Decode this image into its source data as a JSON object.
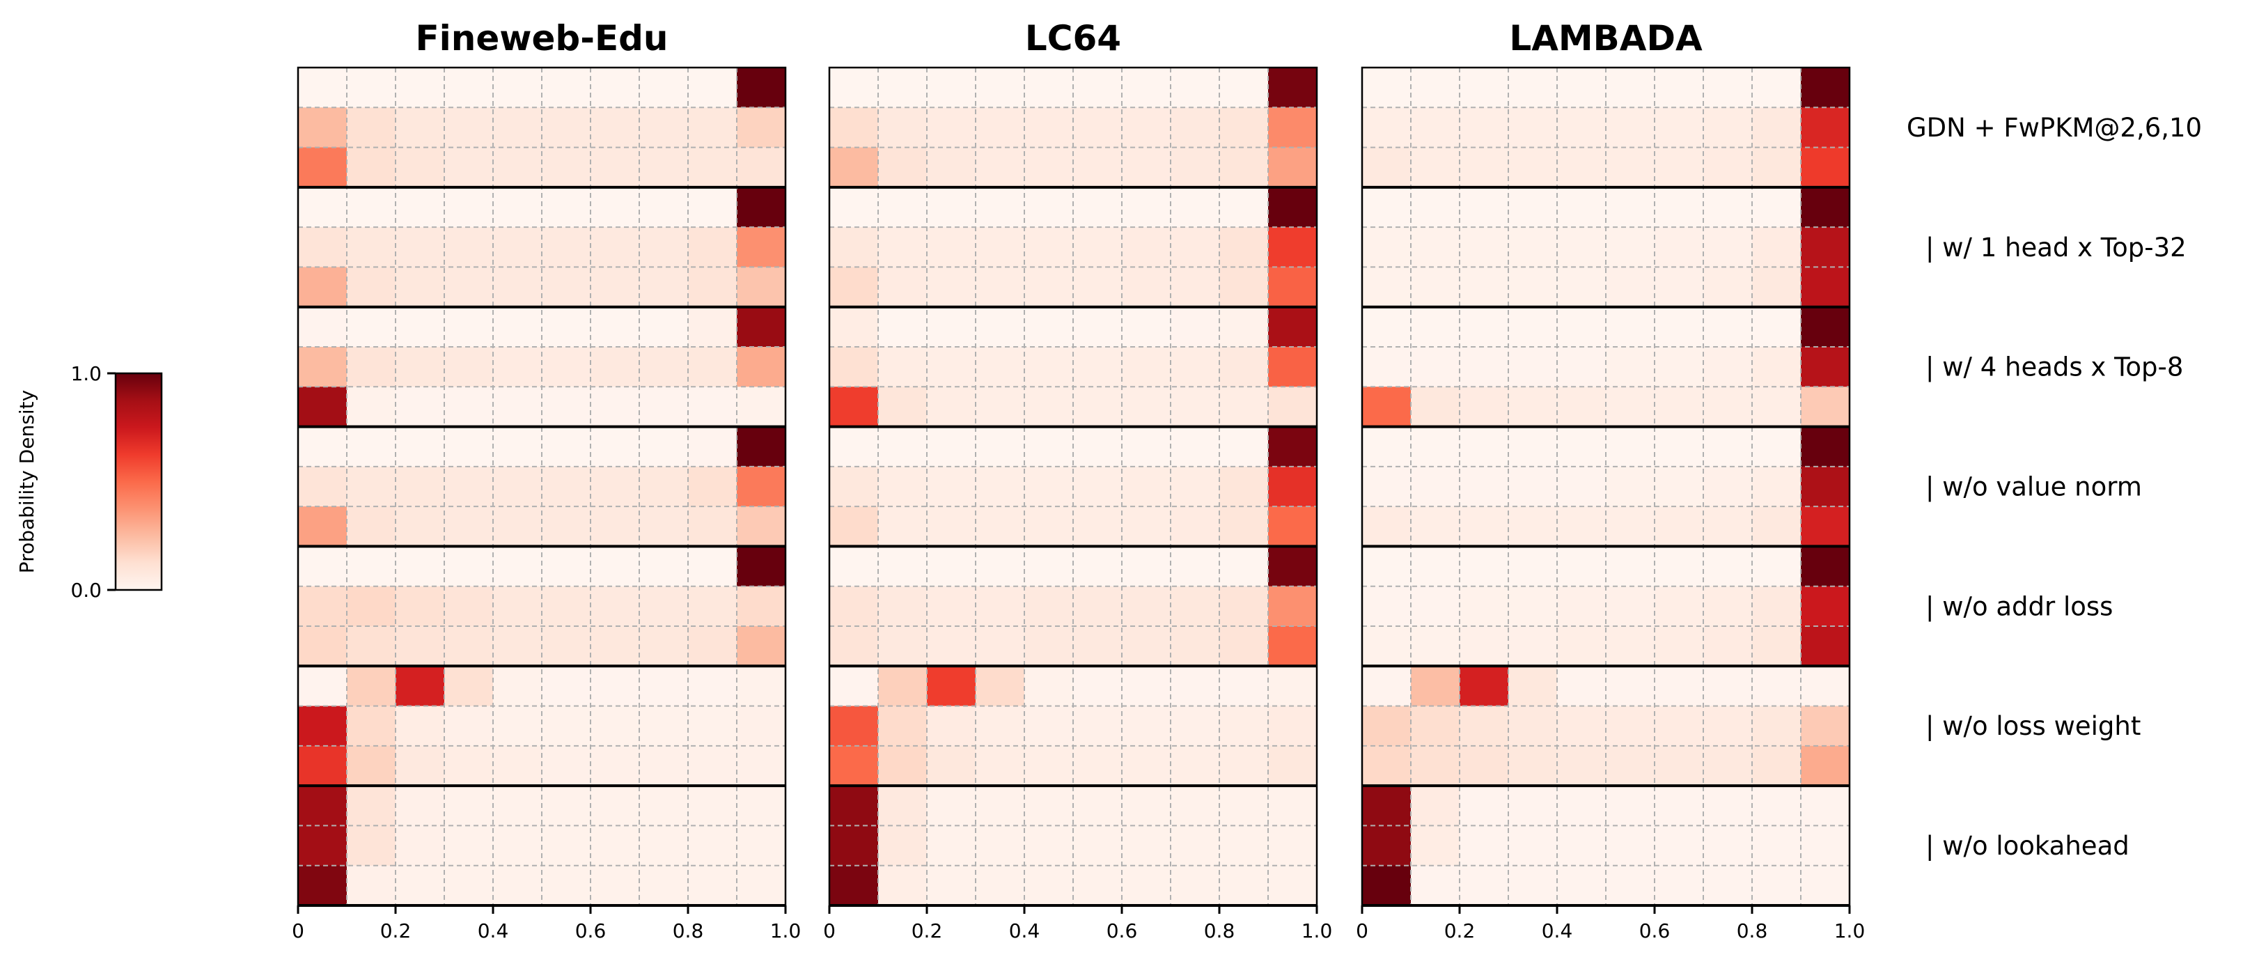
{
  "chart_data": {
    "type": "heatmap",
    "colormap": "Reds",
    "colorbar": {
      "label": "Probability Density",
      "ticks": [
        "0.0",
        "1.0"
      ],
      "range": [
        0,
        1
      ]
    },
    "x_ticks": [
      "0",
      "0.2",
      "0.4",
      "0.6",
      "0.8",
      "1.0"
    ],
    "xlim": [
      0,
      1
    ],
    "bins": 10,
    "grid": true,
    "row_groups": [
      "GDN + FwPKM@2,6,10",
      "| w/ 1 head x Top-32",
      "| w/ 4 heads x Top-8",
      "| w/o value norm",
      "| w/o addr loss",
      "| w/o loss weight",
      "| w/o lookahead"
    ],
    "rows_per_group": 3,
    "panels": [
      {
        "title": "Fineweb-Edu",
        "values": [
          [
            0,
            0,
            0,
            0,
            0,
            0,
            0,
            0,
            0,
            1
          ],
          [
            0.25,
            0.12,
            0.08,
            0.07,
            0.07,
            0.07,
            0.07,
            0.07,
            0.08,
            0.17
          ],
          [
            0.45,
            0.12,
            0.09,
            0.07,
            0.07,
            0.07,
            0.07,
            0.07,
            0.08,
            0.1
          ],
          [
            0,
            0,
            0,
            0,
            0,
            0,
            0,
            0,
            0,
            1
          ],
          [
            0.1,
            0.08,
            0.07,
            0.07,
            0.07,
            0.07,
            0.07,
            0.07,
            0.1,
            0.38
          ],
          [
            0.28,
            0.1,
            0.08,
            0.07,
            0.07,
            0.07,
            0.07,
            0.07,
            0.1,
            0.22
          ],
          [
            0.01,
            0,
            0,
            0,
            0,
            0,
            0,
            0,
            0.03,
            0.9
          ],
          [
            0.25,
            0.1,
            0.08,
            0.07,
            0.06,
            0.06,
            0.07,
            0.07,
            0.08,
            0.3
          ],
          [
            0.88,
            0.02,
            0.01,
            0.01,
            0.01,
            0.01,
            0.01,
            0.01,
            0.01,
            0.02
          ],
          [
            0,
            0,
            0,
            0,
            0,
            0,
            0,
            0,
            0.01,
            1
          ],
          [
            0.1,
            0.08,
            0.08,
            0.07,
            0.07,
            0.07,
            0.07,
            0.08,
            0.12,
            0.45
          ],
          [
            0.33,
            0.1,
            0.08,
            0.07,
            0.07,
            0.07,
            0.07,
            0.07,
            0.09,
            0.2
          ],
          [
            0,
            0,
            0,
            0,
            0,
            0,
            0,
            0,
            0,
            1
          ],
          [
            0.14,
            0.15,
            0.12,
            0.1,
            0.08,
            0.08,
            0.07,
            0.07,
            0.08,
            0.14
          ],
          [
            0.15,
            0.12,
            0.1,
            0.09,
            0.08,
            0.08,
            0.08,
            0.08,
            0.1,
            0.25
          ],
          [
            0.01,
            0.18,
            0.72,
            0.12,
            0.02,
            0.01,
            0.01,
            0.01,
            0.01,
            0.02
          ],
          [
            0.75,
            0.14,
            0.05,
            0.03,
            0.02,
            0.02,
            0.02,
            0.02,
            0.02,
            0.03
          ],
          [
            0.65,
            0.17,
            0.07,
            0.05,
            0.04,
            0.03,
            0.03,
            0.03,
            0.03,
            0.03
          ],
          [
            0.88,
            0.1,
            0.03,
            0.02,
            0.02,
            0.02,
            0.02,
            0.02,
            0.02,
            0.02
          ],
          [
            0.88,
            0.1,
            0.03,
            0.02,
            0.02,
            0.02,
            0.02,
            0.02,
            0.02,
            0.02
          ],
          [
            0.95,
            0.03,
            0.02,
            0.02,
            0.02,
            0.02,
            0.02,
            0.02,
            0.02,
            0.02
          ]
        ]
      },
      {
        "title": "LC64",
        "values": [
          [
            0,
            0,
            0,
            0,
            0,
            0,
            0,
            0,
            0,
            0.97
          ],
          [
            0.13,
            0.07,
            0.06,
            0.06,
            0.06,
            0.06,
            0.06,
            0.07,
            0.09,
            0.4
          ],
          [
            0.25,
            0.1,
            0.07,
            0.06,
            0.06,
            0.06,
            0.06,
            0.07,
            0.09,
            0.33
          ],
          [
            0,
            0,
            0,
            0,
            0,
            0,
            0,
            0,
            0,
            1
          ],
          [
            0.08,
            0.05,
            0.05,
            0.05,
            0.05,
            0.05,
            0.06,
            0.06,
            0.1,
            0.62
          ],
          [
            0.14,
            0.06,
            0.05,
            0.05,
            0.05,
            0.05,
            0.06,
            0.06,
            0.1,
            0.52
          ],
          [
            0.05,
            0,
            0,
            0,
            0,
            0,
            0,
            0.01,
            0.02,
            0.86
          ],
          [
            0.12,
            0.05,
            0.04,
            0.04,
            0.04,
            0.04,
            0.05,
            0.05,
            0.07,
            0.52
          ],
          [
            0.62,
            0.09,
            0.05,
            0.04,
            0.04,
            0.04,
            0.04,
            0.04,
            0.05,
            0.1
          ],
          [
            0,
            0,
            0,
            0,
            0,
            0,
            0,
            0,
            0,
            0.96
          ],
          [
            0.08,
            0.05,
            0.04,
            0.04,
            0.04,
            0.04,
            0.05,
            0.05,
            0.09,
            0.66
          ],
          [
            0.14,
            0.05,
            0.05,
            0.05,
            0.05,
            0.05,
            0.05,
            0.06,
            0.09,
            0.5
          ],
          [
            0,
            0,
            0,
            0,
            0,
            0,
            0,
            0,
            0,
            0.97
          ],
          [
            0.1,
            0.07,
            0.06,
            0.06,
            0.07,
            0.07,
            0.07,
            0.08,
            0.1,
            0.38
          ],
          [
            0.1,
            0.07,
            0.06,
            0.06,
            0.07,
            0.07,
            0.07,
            0.08,
            0.1,
            0.5
          ],
          [
            0.01,
            0.18,
            0.62,
            0.14,
            0.02,
            0.01,
            0.01,
            0.01,
            0.01,
            0.02
          ],
          [
            0.55,
            0.14,
            0.06,
            0.04,
            0.03,
            0.03,
            0.03,
            0.03,
            0.04,
            0.06
          ],
          [
            0.5,
            0.15,
            0.08,
            0.05,
            0.04,
            0.04,
            0.04,
            0.04,
            0.05,
            0.08
          ],
          [
            0.92,
            0.07,
            0.02,
            0.02,
            0.02,
            0.02,
            0.02,
            0.02,
            0.02,
            0.02
          ],
          [
            0.92,
            0.07,
            0.02,
            0.02,
            0.02,
            0.02,
            0.02,
            0.02,
            0.02,
            0.02
          ],
          [
            0.96,
            0.04,
            0.02,
            0.02,
            0.02,
            0.02,
            0.02,
            0.02,
            0.02,
            0.02
          ]
        ]
      },
      {
        "title": "LAMBADA",
        "values": [
          [
            0,
            0,
            0,
            0,
            0,
            0,
            0,
            0,
            0,
            1
          ],
          [
            0.04,
            0.04,
            0.04,
            0.04,
            0.04,
            0.04,
            0.04,
            0.05,
            0.07,
            0.7
          ],
          [
            0.07,
            0.05,
            0.05,
            0.05,
            0.05,
            0.05,
            0.05,
            0.06,
            0.08,
            0.63
          ],
          [
            0,
            0,
            0,
            0,
            0,
            0,
            0,
            0,
            0,
            1
          ],
          [
            0.02,
            0.02,
            0.02,
            0.02,
            0.02,
            0.02,
            0.03,
            0.03,
            0.06,
            0.82
          ],
          [
            0.02,
            0.02,
            0.02,
            0.02,
            0.02,
            0.03,
            0.03,
            0.04,
            0.07,
            0.8
          ],
          [
            0,
            0,
            0,
            0,
            0,
            0,
            0,
            0,
            0,
            1
          ],
          [
            0.01,
            0.01,
            0.01,
            0.01,
            0.01,
            0.02,
            0.02,
            0.03,
            0.05,
            0.82
          ],
          [
            0.5,
            0.08,
            0.06,
            0.05,
            0.05,
            0.04,
            0.04,
            0.04,
            0.04,
            0.2
          ],
          [
            0,
            0,
            0,
            0,
            0,
            0,
            0,
            0,
            0,
            1
          ],
          [
            0.01,
            0.01,
            0.01,
            0.01,
            0.01,
            0.02,
            0.02,
            0.03,
            0.04,
            0.85
          ],
          [
            0.06,
            0.04,
            0.04,
            0.04,
            0.04,
            0.04,
            0.05,
            0.05,
            0.07,
            0.72
          ],
          [
            0,
            0,
            0,
            0,
            0,
            0,
            0,
            0,
            0,
            1
          ],
          [
            0.01,
            0.01,
            0.02,
            0.02,
            0.03,
            0.03,
            0.04,
            0.05,
            0.07,
            0.75
          ],
          [
            0.02,
            0.02,
            0.03,
            0.03,
            0.04,
            0.04,
            0.05,
            0.06,
            0.08,
            0.8
          ],
          [
            0.01,
            0.24,
            0.72,
            0.08,
            0.01,
            0.01,
            0.01,
            0.01,
            0.01,
            0.01
          ],
          [
            0.17,
            0.13,
            0.09,
            0.07,
            0.06,
            0.06,
            0.06,
            0.06,
            0.08,
            0.2
          ],
          [
            0.15,
            0.12,
            0.1,
            0.08,
            0.07,
            0.07,
            0.07,
            0.07,
            0.09,
            0.3
          ],
          [
            0.92,
            0.06,
            0.01,
            0.01,
            0.01,
            0.01,
            0.01,
            0.01,
            0.01,
            0.01
          ],
          [
            0.92,
            0.05,
            0.01,
            0.01,
            0.01,
            0.01,
            0.01,
            0.01,
            0.01,
            0.01
          ],
          [
            1,
            0.01,
            0.01,
            0.01,
            0.01,
            0.01,
            0.01,
            0.01,
            0.01,
            0.01
          ]
        ]
      }
    ]
  }
}
